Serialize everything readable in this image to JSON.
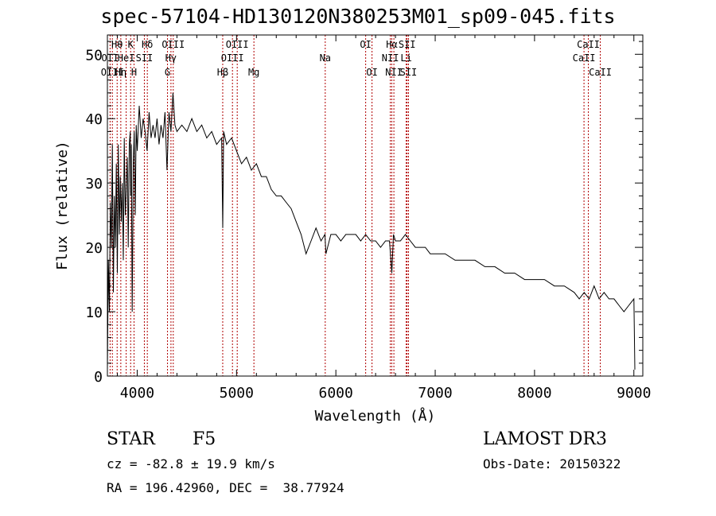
{
  "chart_data": {
    "type": "line",
    "title": "spec-57104-HD130120N380253M01_sp09-045.fits",
    "xlabel": "Wavelength (Å)",
    "ylabel": "Flux (relative)",
    "xlim": [
      3700,
      9090
    ],
    "ylim": [
      0,
      53
    ],
    "xticks": [
      4000,
      5000,
      6000,
      7000,
      8000,
      9000
    ],
    "yticks": [
      0,
      10,
      20,
      30,
      40,
      50
    ],
    "series": [
      {
        "name": "flux",
        "x": [
          3700,
          3710,
          3720,
          3730,
          3740,
          3750,
          3760,
          3770,
          3780,
          3790,
          3800,
          3810,
          3820,
          3830,
          3840,
          3850,
          3860,
          3870,
          3880,
          3890,
          3900,
          3910,
          3920,
          3930,
          3935,
          3940,
          3950,
          3960,
          3970,
          3980,
          3990,
          4000,
          4020,
          4040,
          4060,
          4080,
          4100,
          4120,
          4140,
          4160,
          4180,
          4200,
          4220,
          4240,
          4260,
          4280,
          4300,
          4320,
          4340,
          4360,
          4380,
          4400,
          4450,
          4500,
          4550,
          4600,
          4650,
          4700,
          4750,
          4800,
          4850,
          4861,
          4870,
          4900,
          4950,
          5000,
          5050,
          5100,
          5150,
          5200,
          5250,
          5300,
          5350,
          5400,
          5450,
          5500,
          5550,
          5600,
          5650,
          5700,
          5750,
          5800,
          5850,
          5890,
          5900,
          5950,
          6000,
          6050,
          6100,
          6150,
          6200,
          6250,
          6300,
          6350,
          6400,
          6450,
          6500,
          6540,
          6563,
          6580,
          6600,
          6650,
          6700,
          6750,
          6800,
          6850,
          6900,
          6950,
          7000,
          7100,
          7200,
          7300,
          7400,
          7500,
          7600,
          7700,
          7800,
          7900,
          8000,
          8100,
          8200,
          8300,
          8400,
          8450,
          8500,
          8550,
          8600,
          8650,
          8700,
          8750,
          8800,
          8850,
          8900,
          8950,
          9000,
          9010
        ],
        "values": [
          1,
          18,
          10,
          27,
          20,
          36,
          13,
          28,
          20,
          33,
          16,
          36,
          22,
          31,
          24,
          30,
          18,
          37,
          25,
          29,
          34,
          20,
          36,
          38,
          28,
          36,
          10,
          33,
          38,
          25,
          39,
          35,
          42,
          37,
          40,
          38,
          35,
          41,
          37,
          39,
          37,
          40,
          36,
          39,
          37,
          41,
          32,
          41,
          38,
          44,
          39,
          38,
          39,
          38,
          40,
          38,
          39,
          37,
          38,
          36,
          37,
          23,
          38,
          36,
          37,
          35,
          33,
          34,
          32,
          33,
          31,
          31,
          29,
          28,
          28,
          27,
          26,
          24,
          22,
          19,
          21,
          23,
          21,
          22,
          19,
          22,
          22,
          21,
          22,
          22,
          22,
          21,
          22,
          21,
          21,
          20,
          21,
          21,
          16,
          22,
          21,
          21,
          22,
          21,
          20,
          20,
          20,
          19,
          19,
          19,
          18,
          18,
          18,
          17,
          17,
          16,
          16,
          15,
          15,
          15,
          14,
          14,
          13,
          12,
          13,
          12,
          14,
          12,
          13,
          12,
          12,
          11,
          10,
          11,
          12,
          1
        ]
      }
    ],
    "lines": [
      {
        "label": "OII",
        "wl": 3727,
        "row": 1
      },
      {
        "label": "OIII",
        "wl": 3750,
        "row": 2
      },
      {
        "label": "Hθ",
        "wl": 3798,
        "row": 0
      },
      {
        "label": "Hη",
        "wl": 3835,
        "row": 2
      },
      {
        "label": "HeI",
        "wl": 3889,
        "row": 1
      },
      {
        "label": "K",
        "wl": 3934,
        "row": 0
      },
      {
        "label": "H",
        "wl": 3968,
        "row": 2
      },
      {
        "label": "SII",
        "wl": 4072,
        "row": 1
      },
      {
        "label": "Hδ",
        "wl": 4102,
        "row": 0
      },
      {
        "label": "G",
        "wl": 4305,
        "row": 2
      },
      {
        "label": "Hγ",
        "wl": 4340,
        "row": 1
      },
      {
        "label": "OIII",
        "wl": 4363,
        "row": 0
      },
      {
        "label": "Hβ",
        "wl": 4861,
        "row": 2
      },
      {
        "label": "OIII",
        "wl": 4959,
        "row": 1
      },
      {
        "label": "OIII",
        "wl": 5007,
        "row": 0
      },
      {
        "label": "Mg",
        "wl": 5175,
        "row": 2
      },
      {
        "label": "Na",
        "wl": 5893,
        "row": 1
      },
      {
        "label": "OI",
        "wl": 6300,
        "row": 0
      },
      {
        "label": "OI",
        "wl": 6364,
        "row": 2
      },
      {
        "label": "NII",
        "wl": 6548,
        "row": 1
      },
      {
        "label": "Hα",
        "wl": 6563,
        "row": 0
      },
      {
        "label": "NII",
        "wl": 6584,
        "row": 2
      },
      {
        "label": "Li",
        "wl": 6708,
        "row": 1
      },
      {
        "label": "SII",
        "wl": 6717,
        "row": 0
      },
      {
        "label": "SII",
        "wl": 6731,
        "row": 2
      },
      {
        "label": "CaII",
        "wl": 8498,
        "row": 1
      },
      {
        "label": "CaII",
        "wl": 8542,
        "row": 0
      },
      {
        "label": "CaII",
        "wl": 8662,
        "row": 2
      }
    ]
  },
  "info": {
    "class": "STAR",
    "subclass": "F5",
    "survey": "LAMOST DR3",
    "cz": "cz = -82.8 ± 19.9 km/s",
    "obs_date": "Obs-Date: 20150322",
    "coords": "RA = 196.42960, DEC =  38.77924"
  },
  "colors": {
    "line_marker": "#b00000",
    "spectrum": "#000000"
  }
}
